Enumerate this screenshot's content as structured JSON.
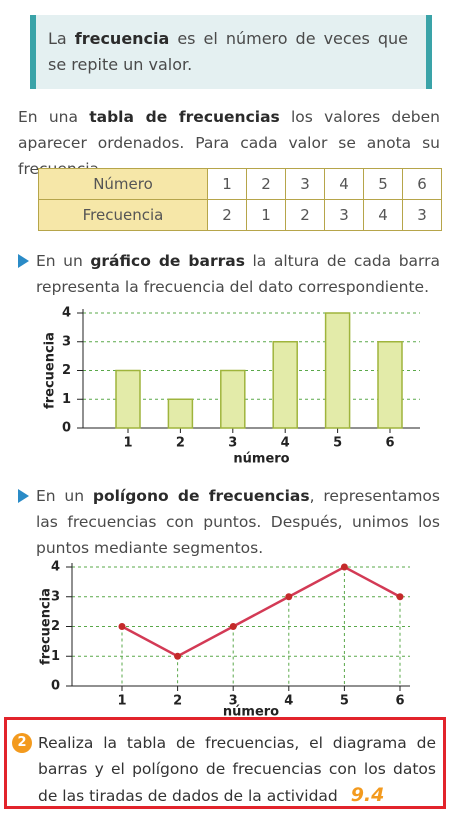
{
  "definition": {
    "parts": [
      "La ",
      "frecuencia",
      " es el número de veces que se repite un valor."
    ]
  },
  "intro": {
    "parts": [
      "En una ",
      "tabla de frecuencias",
      " los valores deben aparecer ordenados. Para cada valor se anota su frecuencia."
    ]
  },
  "table": {
    "rows": [
      [
        "Número",
        1,
        2,
        3,
        4,
        5,
        6
      ],
      [
        "Frecuencia",
        2,
        1,
        2,
        3,
        4,
        3
      ]
    ]
  },
  "bar_text": {
    "parts": [
      "En un ",
      "gráfico de barras",
      " la altura de cada barra representa la frecuencia del dato correspondiente."
    ]
  },
  "chart_data": [
    {
      "type": "bar",
      "categories": [
        "1",
        "2",
        "3",
        "4",
        "5",
        "6"
      ],
      "values": [
        2,
        1,
        2,
        3,
        4,
        3
      ],
      "color": "#e3eba9",
      "edge_color": "#9fb43c",
      "x_label": "número",
      "y_label": "frecuencia",
      "ylim": [
        0,
        4
      ],
      "yticks": [
        0,
        1,
        2,
        3,
        4
      ],
      "grid": true
    },
    {
      "type": "line",
      "categories": [
        "1",
        "2",
        "3",
        "4",
        "5",
        "6"
      ],
      "values": [
        2,
        1,
        2,
        3,
        4,
        3
      ],
      "color": "#d33a55",
      "x_label": "número",
      "y_label": "frecuencia",
      "ylim": [
        0,
        4
      ],
      "yticks": [
        0,
        1,
        2,
        3,
        4
      ],
      "grid": true
    }
  ],
  "polygon_text": {
    "parts": [
      "En un ",
      "polígono de frecuencias",
      ", representamos las frecuencias con puntos. Después, unimos los puntos mediante segmentos."
    ]
  },
  "exercise": {
    "number": "2",
    "text": "Realiza la tabla de frecuencias, el diagrama de barras y el polígono de frecuencias con los datos de las tiradas de dados de la actividad",
    "activity": "9.4"
  }
}
